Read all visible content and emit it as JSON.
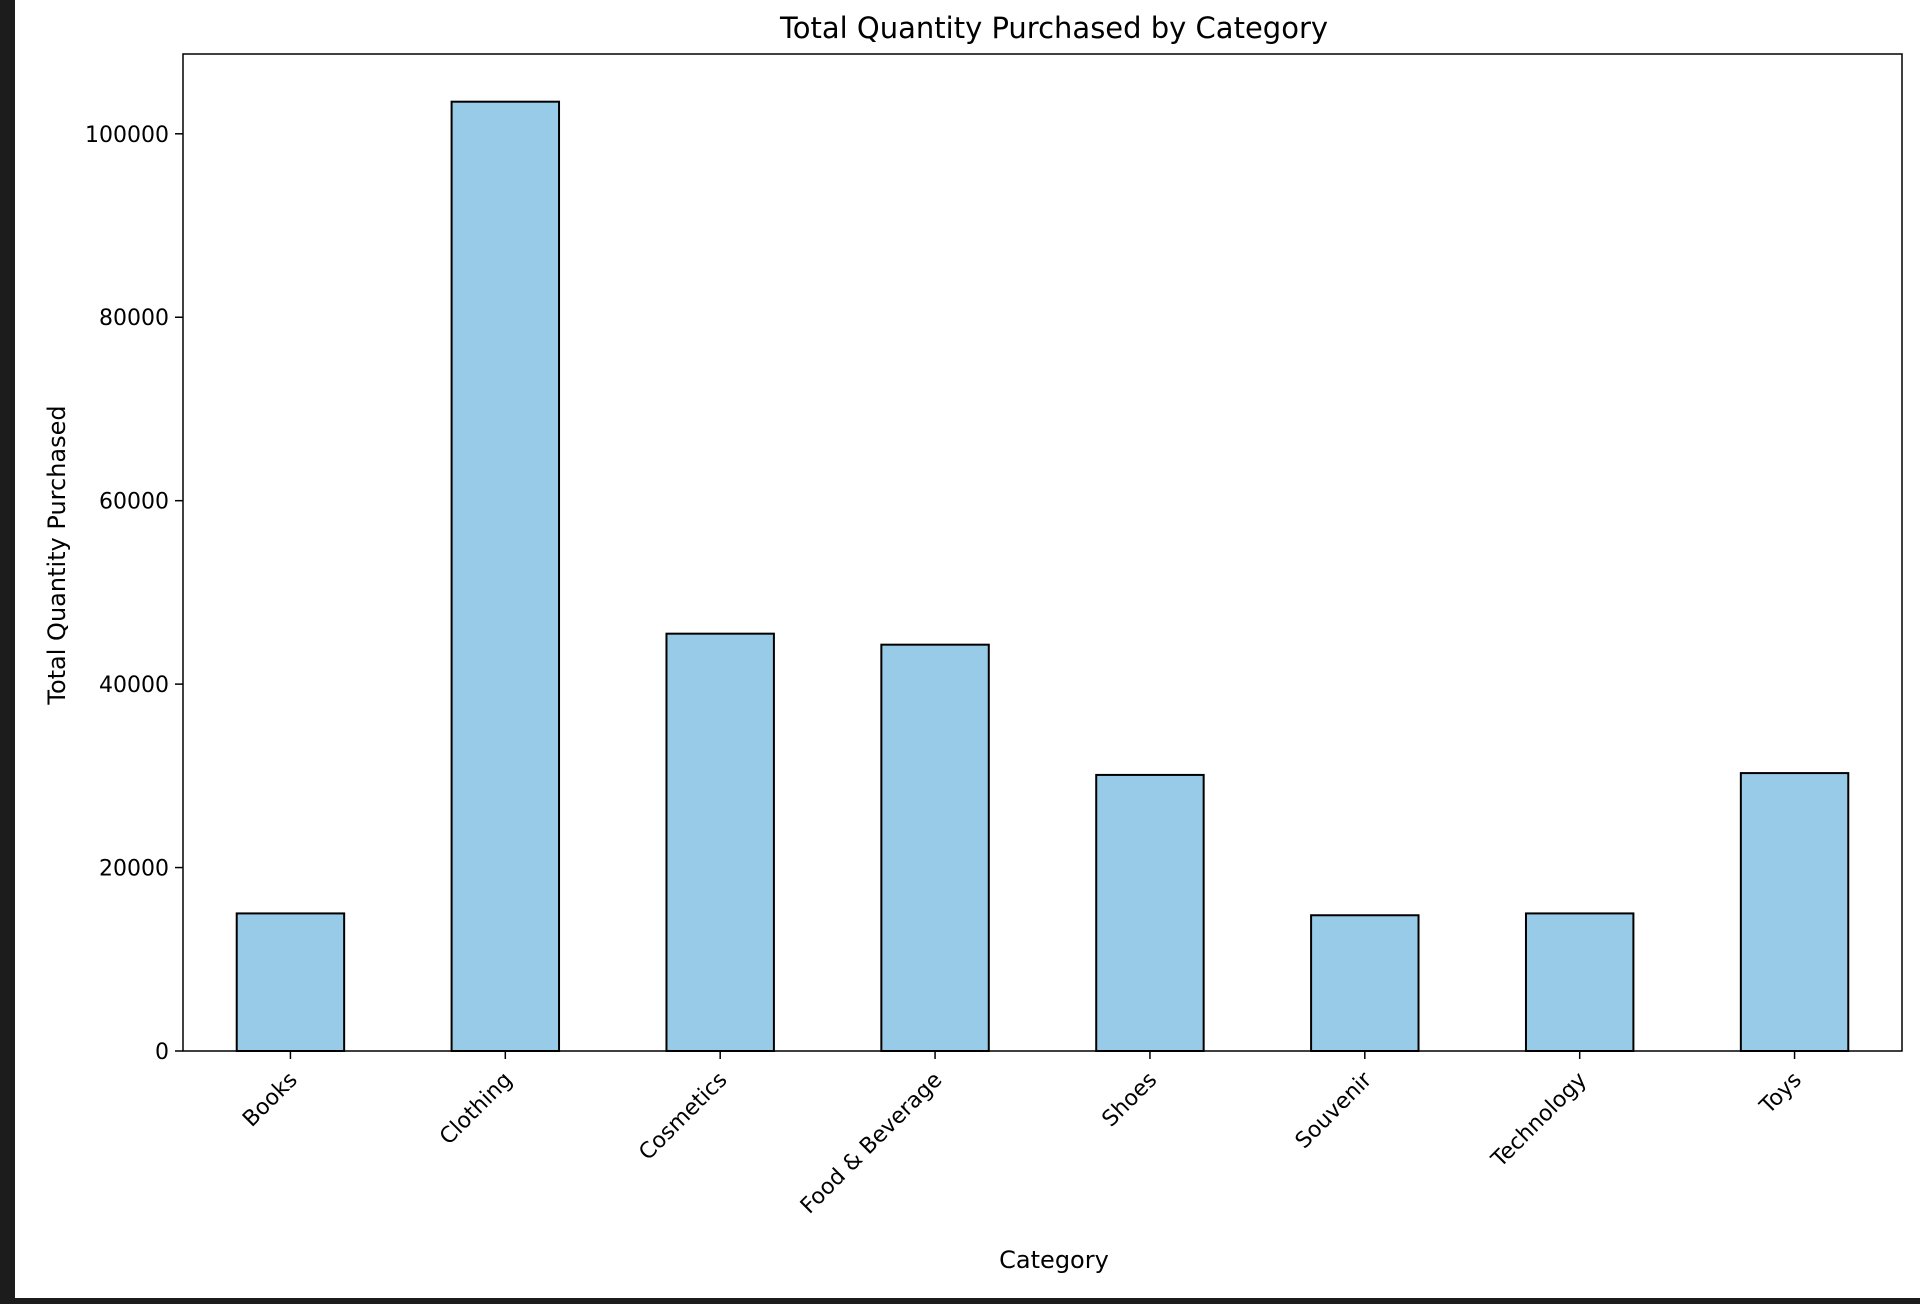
{
  "chart_data": {
    "type": "bar",
    "title": "Total Quantity Purchased by Category",
    "xlabel": "Category",
    "ylabel": "Total Quantity Purchased",
    "categories": [
      "Books",
      "Clothing",
      "Cosmetics",
      "Food & Beverage",
      "Shoes",
      "Souvenir",
      "Technology",
      "Toys"
    ],
    "values": [
      15000,
      103500,
      45500,
      44300,
      30100,
      14800,
      15000,
      30300
    ],
    "ylim": [
      0,
      108700
    ],
    "yticks": [
      0,
      20000,
      40000,
      60000,
      80000,
      100000
    ],
    "bar_color": "#97cbe8",
    "edge_color": "#000000",
    "grid": false,
    "legend": "none"
  }
}
